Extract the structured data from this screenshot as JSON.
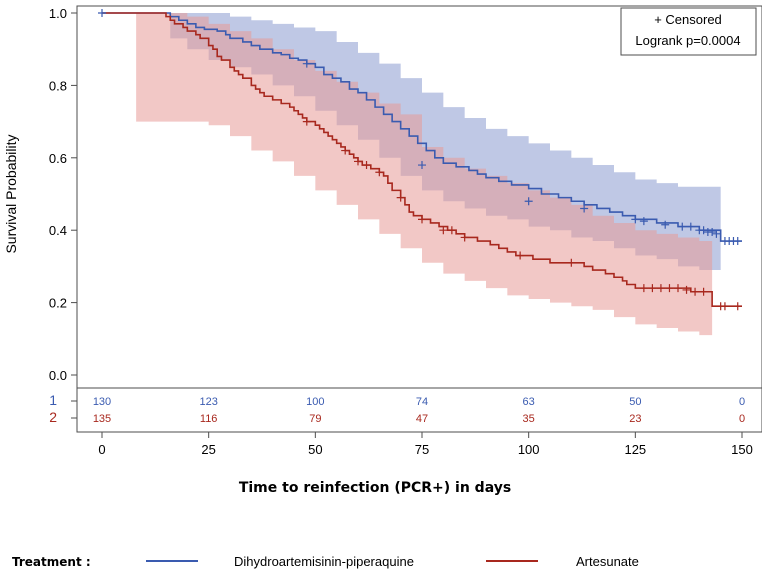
{
  "chart_data": {
    "type": "line",
    "subtype": "kaplan-meier",
    "xlabel": "Time to reinfection (PCR+) in days",
    "ylabel": "Survival Probability",
    "xlim": [
      0,
      150
    ],
    "ylim": [
      0,
      1
    ],
    "xticks": [
      0,
      25,
      50,
      75,
      100,
      125,
      150
    ],
    "yticks": [
      0.0,
      0.2,
      0.4,
      0.6,
      0.8,
      1.0
    ],
    "inset": {
      "line1": "+ Censored",
      "line2": "Logrank p=0.0004"
    },
    "series": [
      {
        "name": "Dihydroartemisinin-piperaquine",
        "risk_label": "1",
        "color": "#3a5bb0",
        "band_color": "#8b9ad0",
        "steps": [
          [
            0,
            1.0
          ],
          [
            14,
            1.0
          ],
          [
            16,
            0.99
          ],
          [
            18,
            0.98
          ],
          [
            20,
            0.97
          ],
          [
            22,
            0.96
          ],
          [
            24,
            0.955
          ],
          [
            27,
            0.95
          ],
          [
            29,
            0.94
          ],
          [
            30,
            0.93
          ],
          [
            33,
            0.92
          ],
          [
            35,
            0.91
          ],
          [
            37,
            0.9
          ],
          [
            40,
            0.89
          ],
          [
            42,
            0.885
          ],
          [
            44,
            0.875
          ],
          [
            46,
            0.87
          ],
          [
            48,
            0.86
          ],
          [
            50,
            0.85
          ],
          [
            52,
            0.83
          ],
          [
            54,
            0.82
          ],
          [
            56,
            0.81
          ],
          [
            58,
            0.79
          ],
          [
            60,
            0.78
          ],
          [
            62,
            0.76
          ],
          [
            64,
            0.74
          ],
          [
            66,
            0.72
          ],
          [
            68,
            0.7
          ],
          [
            70,
            0.68
          ],
          [
            72,
            0.66
          ],
          [
            74,
            0.64
          ],
          [
            76,
            0.62
          ],
          [
            78,
            0.6
          ],
          [
            80,
            0.585
          ],
          [
            83,
            0.575
          ],
          [
            86,
            0.565
          ],
          [
            88,
            0.555
          ],
          [
            90,
            0.545
          ],
          [
            93,
            0.535
          ],
          [
            96,
            0.525
          ],
          [
            100,
            0.515
          ],
          [
            103,
            0.5
          ],
          [
            107,
            0.49
          ],
          [
            110,
            0.48
          ],
          [
            113,
            0.47
          ],
          [
            116,
            0.46
          ],
          [
            119,
            0.45
          ],
          [
            122,
            0.44
          ],
          [
            125,
            0.43
          ],
          [
            130,
            0.42
          ],
          [
            135,
            0.41
          ],
          [
            140,
            0.4
          ],
          [
            145,
            0.37
          ],
          [
            150,
            0.37
          ]
        ],
        "lower": [
          [
            0,
            1.0
          ],
          [
            14,
            1.0
          ],
          [
            16,
            0.93
          ],
          [
            20,
            0.9
          ],
          [
            25,
            0.87
          ],
          [
            30,
            0.85
          ],
          [
            35,
            0.83
          ],
          [
            40,
            0.8
          ],
          [
            45,
            0.77
          ],
          [
            50,
            0.73
          ],
          [
            55,
            0.69
          ],
          [
            60,
            0.65
          ],
          [
            65,
            0.6
          ],
          [
            70,
            0.55
          ],
          [
            75,
            0.51
          ],
          [
            80,
            0.48
          ],
          [
            85,
            0.46
          ],
          [
            90,
            0.44
          ],
          [
            95,
            0.43
          ],
          [
            100,
            0.41
          ],
          [
            105,
            0.4
          ],
          [
            110,
            0.38
          ],
          [
            115,
            0.37
          ],
          [
            120,
            0.35
          ],
          [
            125,
            0.33
          ],
          [
            130,
            0.32
          ],
          [
            135,
            0.3
          ],
          [
            140,
            0.29
          ],
          [
            145,
            0.27
          ]
        ],
        "upper": [
          [
            0,
            1.0
          ],
          [
            14,
            1.0
          ],
          [
            16,
            1.0
          ],
          [
            20,
            1.0
          ],
          [
            25,
            1.0
          ],
          [
            30,
            0.99
          ],
          [
            35,
            0.98
          ],
          [
            40,
            0.97
          ],
          [
            45,
            0.96
          ],
          [
            50,
            0.95
          ],
          [
            55,
            0.92
          ],
          [
            60,
            0.89
          ],
          [
            65,
            0.86
          ],
          [
            70,
            0.82
          ],
          [
            75,
            0.78
          ],
          [
            80,
            0.74
          ],
          [
            85,
            0.71
          ],
          [
            90,
            0.68
          ],
          [
            95,
            0.66
          ],
          [
            100,
            0.64
          ],
          [
            105,
            0.62
          ],
          [
            110,
            0.6
          ],
          [
            115,
            0.58
          ],
          [
            120,
            0.56
          ],
          [
            125,
            0.54
          ],
          [
            130,
            0.53
          ],
          [
            135,
            0.52
          ],
          [
            140,
            0.52
          ],
          [
            145,
            0.52
          ]
        ],
        "censored": [
          [
            0,
            1.0
          ],
          [
            48,
            0.86
          ],
          [
            75,
            0.58
          ],
          [
            100,
            0.48
          ],
          [
            113,
            0.46
          ],
          [
            125,
            0.43
          ],
          [
            127,
            0.425
          ],
          [
            132,
            0.415
          ],
          [
            136,
            0.41
          ],
          [
            138,
            0.41
          ],
          [
            140,
            0.4
          ],
          [
            141,
            0.4
          ],
          [
            142,
            0.395
          ],
          [
            143,
            0.395
          ],
          [
            144,
            0.39
          ],
          [
            146,
            0.37
          ],
          [
            147,
            0.37
          ],
          [
            148,
            0.37
          ],
          [
            149,
            0.37
          ]
        ],
        "at_risk": [
          130,
          123,
          100,
          74,
          63,
          50,
          0
        ]
      },
      {
        "name": "Artesunate",
        "risk_label": "2",
        "color": "#a8281e",
        "band_color": "#e79a98",
        "steps": [
          [
            0,
            1.0
          ],
          [
            14,
            1.0
          ],
          [
            15,
            0.99
          ],
          [
            16,
            0.98
          ],
          [
            17,
            0.97
          ],
          [
            19,
            0.96
          ],
          [
            20,
            0.95
          ],
          [
            22,
            0.94
          ],
          [
            23,
            0.93
          ],
          [
            25,
            0.91
          ],
          [
            26,
            0.9
          ],
          [
            27,
            0.88
          ],
          [
            28,
            0.87
          ],
          [
            30,
            0.85
          ],
          [
            31,
            0.84
          ],
          [
            32,
            0.83
          ],
          [
            33,
            0.82
          ],
          [
            35,
            0.8
          ],
          [
            36,
            0.79
          ],
          [
            37,
            0.78
          ],
          [
            38,
            0.77
          ],
          [
            40,
            0.76
          ],
          [
            42,
            0.75
          ],
          [
            44,
            0.74
          ],
          [
            45,
            0.73
          ],
          [
            46,
            0.72
          ],
          [
            47,
            0.71
          ],
          [
            48,
            0.7
          ],
          [
            50,
            0.69
          ],
          [
            51,
            0.68
          ],
          [
            52,
            0.67
          ],
          [
            53,
            0.66
          ],
          [
            54,
            0.65
          ],
          [
            55,
            0.64
          ],
          [
            56,
            0.63
          ],
          [
            57,
            0.62
          ],
          [
            58,
            0.61
          ],
          [
            59,
            0.6
          ],
          [
            60,
            0.59
          ],
          [
            61,
            0.58
          ],
          [
            63,
            0.57
          ],
          [
            65,
            0.56
          ],
          [
            66,
            0.55
          ],
          [
            67,
            0.53
          ],
          [
            68,
            0.51
          ],
          [
            70,
            0.49
          ],
          [
            71,
            0.47
          ],
          [
            72,
            0.45
          ],
          [
            73,
            0.44
          ],
          [
            75,
            0.43
          ],
          [
            77,
            0.42
          ],
          [
            79,
            0.41
          ],
          [
            81,
            0.4
          ],
          [
            83,
            0.39
          ],
          [
            85,
            0.38
          ],
          [
            88,
            0.37
          ],
          [
            91,
            0.36
          ],
          [
            93,
            0.35
          ],
          [
            95,
            0.34
          ],
          [
            97,
            0.33
          ],
          [
            101,
            0.32
          ],
          [
            105,
            0.31
          ],
          [
            110,
            0.31
          ],
          [
            113,
            0.3
          ],
          [
            115,
            0.29
          ],
          [
            118,
            0.28
          ],
          [
            120,
            0.27
          ],
          [
            122,
            0.26
          ],
          [
            123,
            0.25
          ],
          [
            125,
            0.24
          ],
          [
            135,
            0.24
          ],
          [
            138,
            0.23
          ],
          [
            142,
            0.23
          ],
          [
            143,
            0.19
          ],
          [
            150,
            0.19
          ]
        ],
        "lower": [
          [
            0,
            1.0
          ],
          [
            8,
            0.7
          ],
          [
            14,
            0.7
          ],
          [
            20,
            0.7
          ],
          [
            25,
            0.69
          ],
          [
            30,
            0.66
          ],
          [
            35,
            0.62
          ],
          [
            40,
            0.59
          ],
          [
            45,
            0.55
          ],
          [
            50,
            0.51
          ],
          [
            55,
            0.47
          ],
          [
            60,
            0.43
          ],
          [
            65,
            0.39
          ],
          [
            70,
            0.35
          ],
          [
            75,
            0.31
          ],
          [
            80,
            0.28
          ],
          [
            85,
            0.26
          ],
          [
            90,
            0.24
          ],
          [
            95,
            0.22
          ],
          [
            100,
            0.21
          ],
          [
            105,
            0.2
          ],
          [
            110,
            0.19
          ],
          [
            115,
            0.18
          ],
          [
            120,
            0.16
          ],
          [
            125,
            0.14
          ],
          [
            130,
            0.13
          ],
          [
            135,
            0.12
          ],
          [
            140,
            0.11
          ],
          [
            143,
            0.11
          ]
        ],
        "upper": [
          [
            0,
            1.0
          ],
          [
            8,
            1.0
          ],
          [
            14,
            1.0
          ],
          [
            20,
            0.99
          ],
          [
            25,
            0.97
          ],
          [
            30,
            0.95
          ],
          [
            35,
            0.93
          ],
          [
            40,
            0.9
          ],
          [
            45,
            0.87
          ],
          [
            50,
            0.84
          ],
          [
            55,
            0.81
          ],
          [
            60,
            0.78
          ],
          [
            65,
            0.75
          ],
          [
            70,
            0.72
          ],
          [
            75,
            0.63
          ],
          [
            80,
            0.6
          ],
          [
            85,
            0.57
          ],
          [
            90,
            0.55
          ],
          [
            95,
            0.53
          ],
          [
            100,
            0.51
          ],
          [
            105,
            0.49
          ],
          [
            110,
            0.47
          ],
          [
            115,
            0.44
          ],
          [
            120,
            0.42
          ],
          [
            125,
            0.4
          ],
          [
            130,
            0.39
          ],
          [
            135,
            0.38
          ],
          [
            140,
            0.37
          ],
          [
            143,
            0.36
          ]
        ],
        "censored": [
          [
            48,
            0.7
          ],
          [
            57,
            0.62
          ],
          [
            60,
            0.59
          ],
          [
            62,
            0.58
          ],
          [
            65,
            0.56
          ],
          [
            70,
            0.49
          ],
          [
            75,
            0.43
          ],
          [
            80,
            0.4
          ],
          [
            82,
            0.4
          ],
          [
            85,
            0.38
          ],
          [
            98,
            0.33
          ],
          [
            110,
            0.31
          ],
          [
            127,
            0.24
          ],
          [
            129,
            0.24
          ],
          [
            131,
            0.24
          ],
          [
            133,
            0.24
          ],
          [
            135,
            0.24
          ],
          [
            137,
            0.235
          ],
          [
            139,
            0.23
          ],
          [
            141,
            0.23
          ],
          [
            145,
            0.19
          ],
          [
            146,
            0.19
          ],
          [
            149,
            0.19
          ]
        ],
        "at_risk": [
          135,
          116,
          79,
          47,
          35,
          23,
          0
        ]
      }
    ]
  },
  "legend": {
    "title": "Treatment :",
    "items": [
      {
        "label": "Dihydroartemisinin-piperaquine",
        "color": "#3a5bb0"
      },
      {
        "label": "Artesunate",
        "color": "#a8281e"
      }
    ]
  }
}
